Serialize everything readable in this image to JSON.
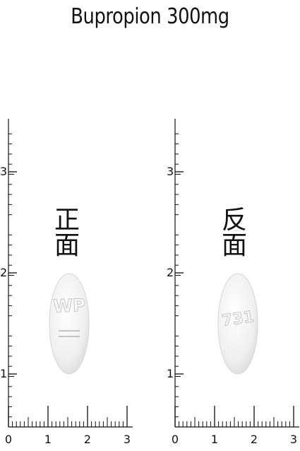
{
  "title": "Bupropion 300mg",
  "front": {
    "label": "正面",
    "imprint": "WP",
    "y_ticks": [
      "1",
      "2",
      "3"
    ],
    "x_ticks": [
      "0",
      "1",
      "2",
      "3"
    ]
  },
  "back": {
    "label": "反面",
    "imprint": "731",
    "y_ticks": [
      "1",
      "2",
      "3"
    ],
    "x_ticks": [
      "0",
      "1",
      "2",
      "3"
    ]
  },
  "colors": {
    "pill": "#f1f1f1",
    "ink": "#111111"
  }
}
